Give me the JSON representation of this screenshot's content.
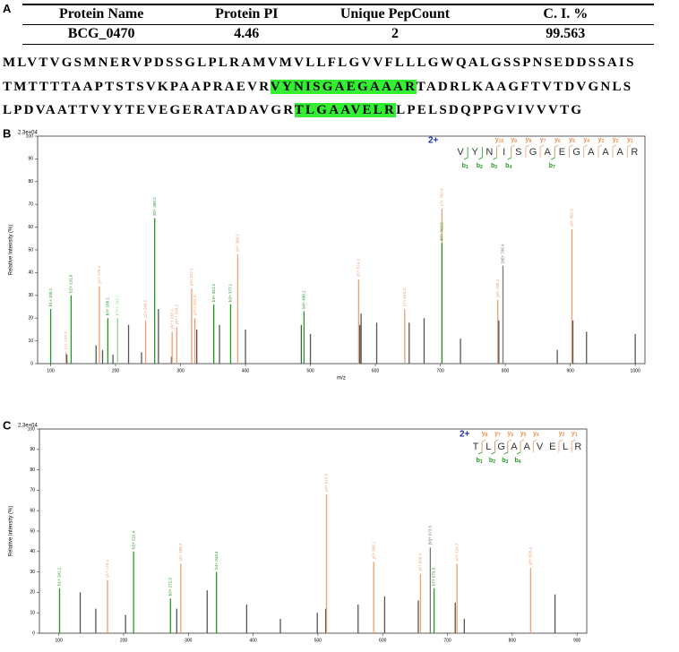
{
  "panel_labels": [
    "A",
    "B",
    "C"
  ],
  "table": {
    "header": [
      "Protein Name",
      "Protein PI",
      "Unique PepCount",
      "C. I. %"
    ],
    "rows": [
      [
        "BCG_0470",
        "4.46",
        "2",
        "99.563"
      ]
    ]
  },
  "highlight_color": "#33ee33",
  "sequence": [
    [
      {
        "text": "MLVTVGSMNERVPDSSGLPLRAMVMVLLFLGVVFLLLGWQALGSSPNSEDDSSAIS",
        "highlight": false
      }
    ],
    [
      {
        "text": "TMTTTTAAPTSTSVKPAAPRAEVR",
        "highlight": false
      },
      {
        "text": "VYNISGAEGAAAR",
        "highlight": true
      },
      {
        "text": "TADRLKAAGFTVTDVGNLS",
        "highlight": false
      }
    ],
    [
      {
        "text": "LPDVAATTVYYTEVEGERATADAVGR",
        "highlight": false
      },
      {
        "text": "TLGAAVELR",
        "highlight": true
      },
      {
        "text": "LPELSDQPPGVIVVVTG",
        "highlight": false
      }
    ]
  ],
  "chart_data": [
    {
      "type": "spectrum",
      "intensity_scale": "2.3e+04",
      "ylabel": "Relative  Intensity (%)",
      "xlabel": "m/z",
      "xlim": [
        80,
        1015
      ],
      "xticks": [
        100,
        200,
        300,
        400,
        500,
        600,
        700,
        800,
        900,
        1000
      ],
      "ylim": [
        0,
        100
      ],
      "yticks": [
        0,
        10,
        20,
        30,
        40,
        50,
        60,
        70,
        80,
        90,
        100
      ],
      "x": [
        100.1,
        123.7,
        125,
        131.6,
        170,
        175.1,
        180,
        188.1,
        196,
        203.1,
        220,
        240,
        246.2,
        260.2,
        266,
        286,
        287.1,
        294.2,
        317.1,
        322.2,
        325,
        351.2,
        360,
        377.1,
        388.1,
        400,
        486,
        490.1,
        500,
        574.2,
        576,
        578,
        602,
        645.2,
        652,
        675,
        702.4,
        702.5,
        731,
        788.4,
        790,
        796.4,
        880,
        902.5,
        904,
        925,
        1000
      ],
      "values": [
        24,
        5,
        4,
        30,
        8,
        34,
        6,
        20,
        4,
        20,
        17,
        5,
        19,
        64,
        24,
        3,
        14,
        16,
        33,
        20,
        15,
        26,
        17,
        26,
        48,
        15,
        17,
        23,
        13,
        37,
        17,
        22,
        18,
        24,
        18,
        20,
        68,
        53,
        11,
        28,
        19,
        43,
        6,
        59,
        19,
        14,
        13
      ],
      "colors": [
        "#1f9a1f",
        "#f0a070",
        "#555555",
        "#1f9a1f",
        "#555555",
        "#f0a070",
        "#555555",
        "#1f9a1f",
        "#555555",
        "#8fd88f",
        "#555555",
        "#555555",
        "#f0a070",
        "#1f9a1f",
        "#555555",
        "#555555",
        "#f0a070",
        "#f0a070",
        "#f0a070",
        "#f0a070",
        "#555555",
        "#1f9a1f",
        "#555555",
        "#1f9a1f",
        "#f0a070",
        "#555555",
        "#555555",
        "#1f9a1f",
        "#555555",
        "#f0a070",
        "#555555",
        "#555555",
        "#555555",
        "#f0a070",
        "#555555",
        "#555555",
        "#f0a070",
        "#1f9a1f",
        "#555555",
        "#f0a070",
        "#555555",
        "#777777",
        "#555555",
        "#f0a070",
        "#555555",
        "#555555",
        "#555555"
      ],
      "peak_labels": [
        "b1+ 100.1",
        "y1+ 123.7",
        null,
        "b2+ 131.6",
        null,
        "y1+ 175.1",
        null,
        "b3+ 188.1",
        null,
        "b7++ 203.1",
        null,
        null,
        "y2+ 246.2",
        "b2+ 260.2",
        null,
        null,
        "y6++ 287.1",
        "y6++ 294.2",
        "y3+ 317.1",
        "y7++ 322.2",
        null,
        "b3+ 351.2",
        null,
        "b3+ 377.1",
        "y4+ 388.1",
        null,
        null,
        "b4+ 490.1",
        null,
        "y5+ 574.2",
        null,
        null,
        null,
        "y7+ 645.2",
        null,
        null,
        "y7+ 702.4",
        "b7+ 702.5",
        null,
        "y8+ 788.4",
        null,
        "[M]+ 796.4",
        null,
        "y9+ 902.5",
        null,
        null,
        null
      ],
      "peptide": {
        "charge": "2+",
        "residues": [
          "V",
          "Y",
          "N",
          "I",
          "S",
          "G",
          "A",
          "E",
          "G",
          "A",
          "A",
          "A",
          "R"
        ],
        "b_letter": "b",
        "b_ions": [
          1,
          2,
          3,
          4,
          7
        ],
        "y_letter": "y",
        "y_ions": [
          10,
          9,
          8,
          7,
          6,
          5,
          4,
          3,
          2,
          1
        ]
      }
    },
    {
      "type": "spectrum",
      "intensity_scale": "2.3e+04",
      "ylabel": "Relative  Intensity (%)",
      "xlim": [
        70,
        915
      ],
      "xticks": [
        100,
        200,
        300,
        400,
        500,
        600,
        700,
        800,
        900
      ],
      "ylim": [
        0,
        100
      ],
      "yticks": [
        0,
        10,
        20,
        30,
        40,
        50,
        60,
        70,
        80,
        90,
        100
      ],
      "x": [
        101.1,
        133,
        157,
        175.1,
        203,
        215.4,
        272.3,
        282,
        288.2,
        329,
        343.4,
        390,
        442,
        499,
        512,
        513.3,
        562,
        586.1,
        603,
        655,
        658.3,
        673.5,
        679.3,
        712,
        714.7,
        726,
        828.4,
        866
      ],
      "values": [
        22,
        20,
        12,
        26,
        9,
        40,
        17,
        12,
        34,
        21,
        30,
        14,
        7,
        10,
        12,
        68,
        14,
        35,
        18,
        16,
        29,
        42,
        22,
        15,
        34,
        7,
        32,
        19
      ],
      "colors": [
        "#1f9a1f",
        "#555555",
        "#555555",
        "#f0a070",
        "#555555",
        "#1f9a1f",
        "#1f9a1f",
        "#555555",
        "#f0a070",
        "#555555",
        "#1f9a1f",
        "#555555",
        "#555555",
        "#555555",
        "#555555",
        "#f0a070",
        "#555555",
        "#f0a070",
        "#555555",
        "#555555",
        "#f0a070",
        "#777777",
        "#1f9a1f",
        "#555555",
        "#f0a070",
        "#555555",
        "#f0a070",
        "#555555"
      ],
      "peak_labels": [
        "b1+ 101.1",
        null,
        null,
        "y1+ 175.1",
        null,
        "b2+ 215.4",
        "b3+ 272.3",
        null,
        "y2+ 288.2",
        null,
        "b4+ 343.4",
        null,
        null,
        null,
        null,
        "y4+ 513.3",
        null,
        "y5+ 586.1",
        null,
        null,
        "y6+ 658.3",
        "[M]+ 673.5",
        "b7+ 679.3",
        null,
        "y7+ 714.7",
        null,
        "y8+ 828.4",
        null
      ],
      "peptide": {
        "charge": "2+",
        "residues": [
          "T",
          "L",
          "G",
          "A",
          "A",
          "V",
          "E",
          "L",
          "R"
        ],
        "b_letter": "b",
        "b_ions": [
          1,
          2,
          3,
          4
        ],
        "y_letter": "y",
        "y_ions": [
          8,
          7,
          6,
          5,
          4,
          2,
          1
        ]
      }
    }
  ]
}
